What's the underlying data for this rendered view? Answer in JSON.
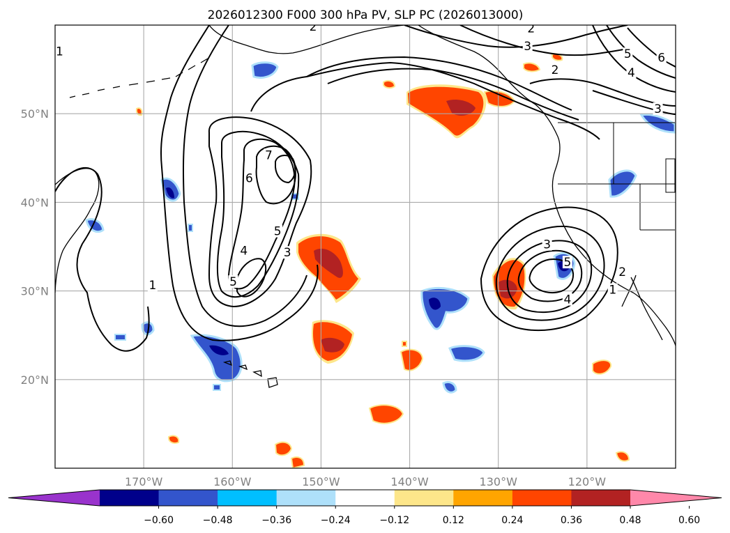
{
  "chart_data": {
    "type": "contour-map",
    "title": "2026012300 F000 300 hPa PV, SLP PC (2026013000)",
    "projection": "plate-carree",
    "lon_range": [
      -180,
      -110
    ],
    "lat_range": [
      10,
      60
    ],
    "lon_ticks": [
      {
        "value": -170,
        "label": "170°W"
      },
      {
        "value": -160,
        "label": "160°W"
      },
      {
        "value": -150,
        "label": "150°W"
      },
      {
        "value": -140,
        "label": "140°W"
      },
      {
        "value": -130,
        "label": "130°W"
      },
      {
        "value": -120,
        "label": "120°W"
      }
    ],
    "lat_ticks": [
      {
        "value": 20,
        "label": "20°N"
      },
      {
        "value": 30,
        "label": "30°N"
      },
      {
        "value": 40,
        "label": "40°N"
      },
      {
        "value": 50,
        "label": "50°N"
      }
    ],
    "grid": true,
    "shaded_field": "300 hPa PV anomaly",
    "colorbar": {
      "extend": "both",
      "colors": [
        "#9933cc",
        "#00008b",
        "#3355cc",
        "#00bfff",
        "#aee0fa",
        "#ffffff",
        "#fde68a",
        "#ffa500",
        "#ff4500",
        "#b22222",
        "#ff88aa"
      ],
      "boundaries": [
        -0.6,
        -0.48,
        -0.36,
        -0.24,
        -0.12,
        0.12,
        0.24,
        0.36,
        0.48,
        0.6
      ],
      "tick_labels": [
        "−0.60",
        "−0.48",
        "−0.36",
        "−0.24",
        "−0.12",
        "0.12",
        "0.24",
        "0.36",
        "0.48",
        "0.60"
      ]
    },
    "contour_field": "SLP principal component",
    "contour_labels": [
      {
        "text": "1",
        "lon": -179.5,
        "lat": 56.9
      },
      {
        "text": "2",
        "lon": -150.9,
        "lat": 59.7
      },
      {
        "text": "2",
        "lon": -126.3,
        "lat": 59.5
      },
      {
        "text": "3",
        "lon": -126.7,
        "lat": 57.5
      },
      {
        "text": "5",
        "lon": -115.4,
        "lat": 56.6
      },
      {
        "text": "6",
        "lon": -111.6,
        "lat": 56.2
      },
      {
        "text": "4",
        "lon": -115.0,
        "lat": 54.5
      },
      {
        "text": "2",
        "lon": -123.6,
        "lat": 54.8
      },
      {
        "text": "3",
        "lon": -112.0,
        "lat": 50.4
      },
      {
        "text": "7",
        "lon": -155.9,
        "lat": 45.2
      },
      {
        "text": "6",
        "lon": -158.1,
        "lat": 42.6
      },
      {
        "text": "5",
        "lon": -154.9,
        "lat": 36.6
      },
      {
        "text": "4",
        "lon": -158.7,
        "lat": 34.4
      },
      {
        "text": "3",
        "lon": -153.8,
        "lat": 34.2
      },
      {
        "text": "5",
        "lon": -159.9,
        "lat": 30.9
      },
      {
        "text": "1",
        "lon": -169.0,
        "lat": 30.5
      },
      {
        "text": "3",
        "lon": -124.5,
        "lat": 35.1
      },
      {
        "text": "5",
        "lon": -122.2,
        "lat": 33.1
      },
      {
        "text": "4",
        "lon": -122.2,
        "lat": 28.9
      },
      {
        "text": "2",
        "lon": -116.0,
        "lat": 32.0
      },
      {
        "text": "1",
        "lon": -117.1,
        "lat": 30.0
      }
    ]
  }
}
